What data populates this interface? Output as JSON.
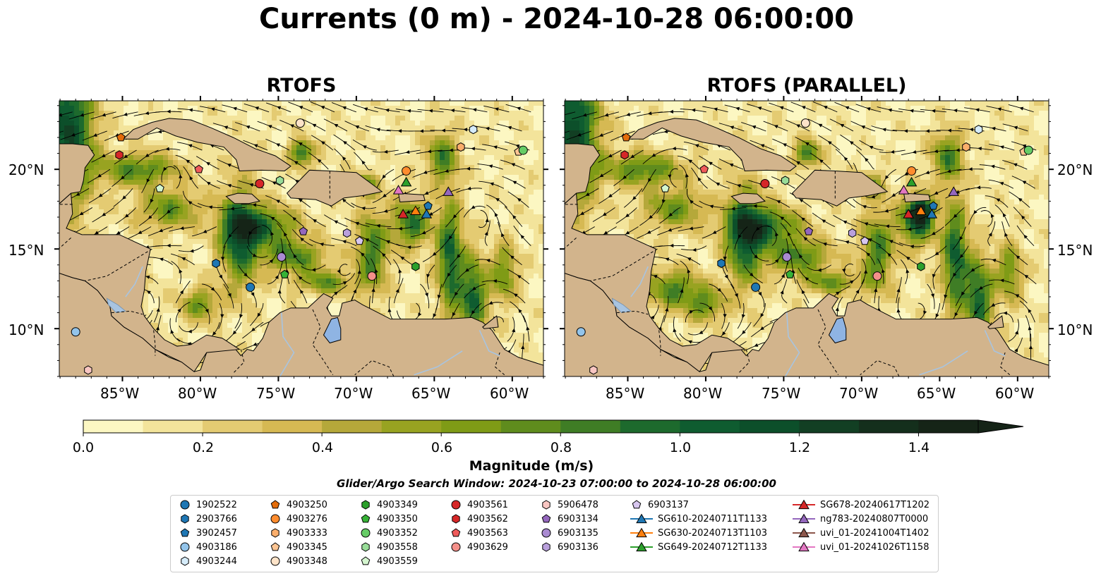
{
  "title": "Currents (0 m) - 2024-10-28 06:00:00",
  "panels": [
    {
      "title": "RTOFS"
    },
    {
      "title": "RTOFS (PARALLEL)"
    }
  ],
  "lat_labels": [
    "20°N",
    "15°N",
    "10°N"
  ],
  "lon_labels": [
    "85°W",
    "80°W",
    "75°W",
    "70°W",
    "65°W",
    "60°W"
  ],
  "colorbar": {
    "label": "Magnitude (m/s)",
    "ticks": [
      "0.0",
      "0.2",
      "0.4",
      "0.6",
      "0.8",
      "1.0",
      "1.2",
      "1.4"
    ],
    "min": 0.0,
    "max": 1.5,
    "step": 0.1,
    "colors": [
      "#fcf7c2",
      "#f3e49b",
      "#e4cb72",
      "#d6b953",
      "#b5a83a",
      "#98a321",
      "#7f9b16",
      "#5f8c1d",
      "#3f7d25",
      "#1d6a2d",
      "#0f5c30",
      "#0c4f2a",
      "#123f23",
      "#142f1c",
      "#152417"
    ],
    "extend": "max"
  },
  "search_window": "Glider/Argo Search Window: 2024-10-23 07:00:00 to 2024-10-28 06:00:00",
  "map_colors": {
    "land": "#d2b48c",
    "water": "#a8c4e0",
    "lake": "#8fb4e3"
  },
  "legend": [
    {
      "label": "1902522",
      "marker": "circle",
      "color": "#1f77b4"
    },
    {
      "label": "2903766",
      "marker": "hexagon",
      "color": "#1f77b4"
    },
    {
      "label": "3902457",
      "marker": "pentagon",
      "color": "#1f77b4"
    },
    {
      "label": "4903186",
      "marker": "circle",
      "color": "#93c4ea"
    },
    {
      "label": "4903244",
      "marker": "hexagon",
      "color": "#d6ecfa"
    },
    {
      "label": "4903250",
      "marker": "pentagon",
      "color": "#e36c0a"
    },
    {
      "label": "4903276",
      "marker": "circle",
      "color": "#ff8c2e"
    },
    {
      "label": "4903333",
      "marker": "hexagon",
      "color": "#fbae6b"
    },
    {
      "label": "4903345",
      "marker": "pentagon",
      "color": "#fcc593"
    },
    {
      "label": "4903348",
      "marker": "circle",
      "color": "#fde3c8"
    },
    {
      "label": "4903349",
      "marker": "hexagon",
      "color": "#2ca02c"
    },
    {
      "label": "4903350",
      "marker": "pentagon",
      "color": "#36b236"
    },
    {
      "label": "4903352",
      "marker": "circle",
      "color": "#66cc66"
    },
    {
      "label": "4903558",
      "marker": "hexagon",
      "color": "#99dd99"
    },
    {
      "label": "4903559",
      "marker": "pentagon",
      "color": "#d4f5cf"
    },
    {
      "label": "4903561",
      "marker": "circle",
      "color": "#d62728"
    },
    {
      "label": "4903562",
      "marker": "hexagon",
      "color": "#d62728"
    },
    {
      "label": "4903563",
      "marker": "pentagon",
      "color": "#ef5b5b"
    },
    {
      "label": "4903629",
      "marker": "circle",
      "color": "#f4908a"
    },
    {
      "label": "5906478",
      "marker": "hexagon",
      "color": "#f9c6c2"
    },
    {
      "label": "6903134",
      "marker": "pentagon",
      "color": "#9467bd"
    },
    {
      "label": "6903135",
      "marker": "circle",
      "color": "#a98ad1"
    },
    {
      "label": "6903136",
      "marker": "hexagon",
      "color": "#b9a0dc"
    },
    {
      "label": "6903137",
      "marker": "pentagon",
      "color": "#d7c6ef"
    },
    {
      "label": "SG610-20240711T1133",
      "marker": "triangle",
      "color": "#1f77b4"
    },
    {
      "label": "SG630-20240713T1103",
      "marker": "triangle",
      "color": "#ff7f0e"
    },
    {
      "label": "SG649-20240712T1133",
      "marker": "triangle",
      "color": "#2ca02c"
    },
    {
      "label": "SG678-20240617T1202",
      "marker": "triangle",
      "color": "#d62728"
    },
    {
      "label": "ng783-20240807T0000",
      "marker": "triangle",
      "color": "#9467bd"
    },
    {
      "label": "uvi_01-20241004T1402",
      "marker": "triangle",
      "color": "#8c564b"
    },
    {
      "label": "uvi_01-20241026T1158",
      "marker": "triangle",
      "color": "#e377c2"
    }
  ],
  "observations": [
    {
      "id": "1902522",
      "lon": -76.8,
      "lat": 12.6
    },
    {
      "id": "2903766",
      "lon": -79.0,
      "lat": 14.1
    },
    {
      "id": "3902457",
      "lon": -65.4,
      "lat": 17.7
    },
    {
      "id": "4903186",
      "lon": -88.0,
      "lat": 9.8
    },
    {
      "id": "4903244",
      "lon": -62.5,
      "lat": 22.5
    },
    {
      "id": "4903250",
      "lon": -85.1,
      "lat": 22.0
    },
    {
      "id": "4903276",
      "lon": -66.8,
      "lat": 19.9
    },
    {
      "id": "4903333",
      "lon": -63.3,
      "lat": 21.4
    },
    {
      "id": "4903345",
      "lon": -59.6,
      "lat": 21.1
    },
    {
      "id": "4903348",
      "lon": -73.6,
      "lat": 22.9
    },
    {
      "id": "4903349",
      "lon": -66.2,
      "lat": 13.9
    },
    {
      "id": "4903350",
      "lon": -74.6,
      "lat": 13.4
    },
    {
      "id": "4903352",
      "lon": -59.3,
      "lat": 21.2
    },
    {
      "id": "4903558",
      "lon": -74.9,
      "lat": 19.3
    },
    {
      "id": "4903559",
      "lon": -82.6,
      "lat": 18.8
    },
    {
      "id": "4903561",
      "lon": -76.2,
      "lat": 19.1
    },
    {
      "id": "4903562",
      "lon": -85.2,
      "lat": 20.9
    },
    {
      "id": "4903563",
      "lon": -80.1,
      "lat": 20.0
    },
    {
      "id": "4903629",
      "lon": -69.0,
      "lat": 13.3
    },
    {
      "id": "5906478",
      "lon": -87.2,
      "lat": 7.4
    },
    {
      "id": "6903134",
      "lon": -73.4,
      "lat": 16.1
    },
    {
      "id": "6903135",
      "lon": -74.8,
      "lat": 14.5
    },
    {
      "id": "6903136",
      "lon": -70.6,
      "lat": 16.0
    },
    {
      "id": "6903137",
      "lon": -69.8,
      "lat": 15.5
    },
    {
      "id": "SG610-20240711T1133",
      "lon": -65.5,
      "lat": 17.2
    },
    {
      "id": "SG630-20240713T1103",
      "lon": -66.2,
      "lat": 17.4
    },
    {
      "id": "SG649-20240712T1133",
      "lon": -66.8,
      "lat": 19.2
    },
    {
      "id": "SG678-20240617T1202",
      "lon": -67.0,
      "lat": 17.2
    },
    {
      "id": "ng783-20240807T0000",
      "lon": -64.1,
      "lat": 18.6
    },
    {
      "id": "uvi_01-20241026T1158",
      "lon": -67.3,
      "lat": 18.7
    }
  ]
}
